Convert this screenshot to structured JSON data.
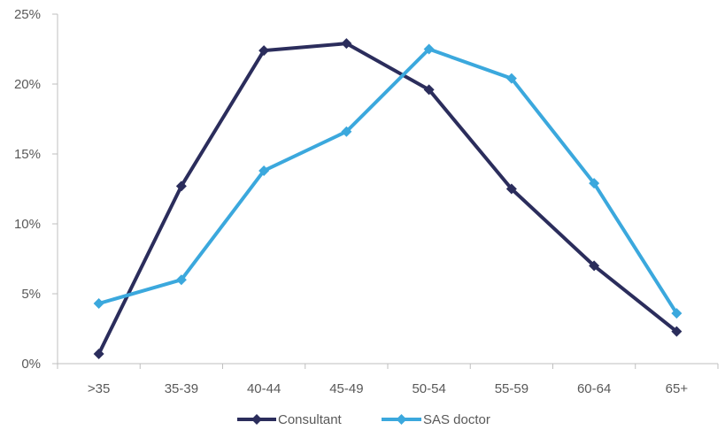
{
  "chart_data": {
    "type": "line",
    "categories": [
      ">35",
      "35-39",
      "40-44",
      "45-49",
      "50-54",
      "55-59",
      "60-64",
      "65+"
    ],
    "series": [
      {
        "name": "Consultant",
        "values": [
          0.7,
          12.7,
          22.4,
          22.9,
          19.6,
          12.5,
          7.0,
          2.3
        ],
        "color": "#2b2d5c"
      },
      {
        "name": "SAS doctor",
        "values": [
          4.3,
          6.0,
          13.8,
          16.6,
          22.5,
          20.4,
          12.9,
          3.6
        ],
        "color": "#3ba8dd"
      }
    ],
    "yticks": [
      "0%",
      "5%",
      "10%",
      "15%",
      "20%",
      "25%"
    ],
    "ytick_values": [
      0,
      5,
      10,
      15,
      20,
      25
    ],
    "ylim": [
      0,
      25
    ],
    "grid": false,
    "legend_position": "bottom",
    "marker": "diamond"
  }
}
